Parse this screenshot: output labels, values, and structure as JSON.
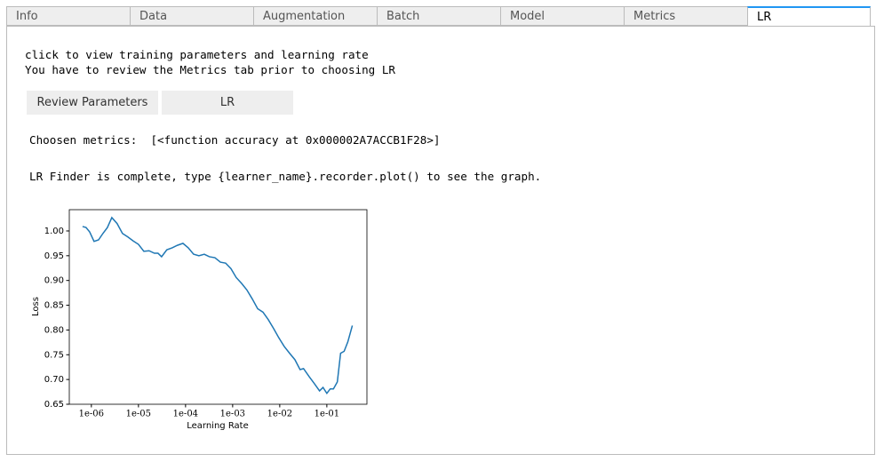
{
  "tabs": [
    "Info",
    "Data",
    "Augmentation",
    "Batch",
    "Model",
    "Metrics",
    "LR"
  ],
  "info": {
    "lines": [
      "click to view training parameters and learning rate",
      "You have to review the Metrics tab prior to choosing LR"
    ],
    "buttons": [
      "Review Parameters",
      "LR"
    ],
    "metrics": "Choosen metrics:  [<function accuracy at 0x000002A7ACCB1F28>]",
    "status": "LR Finder is complete, type {learner_name}.recorder.plot() to see the graph."
  },
  "chart_data": {
    "type": "line",
    "xlabel": "Learning Rate",
    "ylabel": "Loss",
    "color": "#1f77b4",
    "log_x": true,
    "x": [
      6.5e-07,
      7.7e-07,
      9.2e-07,
      1.14e-06,
      1.42e-06,
      1.76e-06,
      2.19e-06,
      2.72e-06,
      3.52e-06,
      4.57e-06,
      5.93e-06,
      7.7e-06,
      1e-05,
      1.3e-05,
      1.68e-05,
      2.18e-05,
      2.6e-05,
      3.1e-05,
      4e-05,
      5.2e-05,
      6.7e-05,
      8.8e-05,
      0.000114,
      0.000148,
      0.000192,
      0.00025,
      0.00032,
      0.00042,
      0.00055,
      0.00071,
      0.00092,
      0.00119,
      0.00155,
      0.002,
      0.0026,
      0.0034,
      0.0044,
      0.0057,
      0.0074,
      0.0096,
      0.0124,
      0.0162,
      0.021,
      0.027,
      0.032,
      0.042,
      0.054,
      0.07,
      0.083,
      0.1,
      0.118,
      0.138,
      0.167,
      0.196,
      0.233,
      0.279,
      0.348
    ],
    "values": [
      1.009,
      1.007,
      0.998,
      0.979,
      0.982,
      0.995,
      1.007,
      1.027,
      1.015,
      0.995,
      0.988,
      0.98,
      0.973,
      0.959,
      0.96,
      0.955,
      0.955,
      0.948,
      0.962,
      0.966,
      0.971,
      0.975,
      0.966,
      0.953,
      0.95,
      0.953,
      0.948,
      0.946,
      0.937,
      0.935,
      0.924,
      0.906,
      0.894,
      0.881,
      0.863,
      0.843,
      0.836,
      0.821,
      0.803,
      0.784,
      0.767,
      0.753,
      0.74,
      0.72,
      0.722,
      0.706,
      0.692,
      0.677,
      0.684,
      0.672,
      0.681,
      0.681,
      0.695,
      0.753,
      0.757,
      0.776,
      0.809
    ],
    "xlim": [
      3.4e-07,
      0.71
    ],
    "ylim": [
      0.65,
      1.043
    ],
    "xticks": [
      {
        "value": 1e-06,
        "label": "1e-06"
      },
      {
        "value": 1e-05,
        "label": "1e-05"
      },
      {
        "value": 0.0001,
        "label": "1e-04"
      },
      {
        "value": 0.001,
        "label": "1e-03"
      },
      {
        "value": 0.01,
        "label": "1e-02"
      },
      {
        "value": 0.1,
        "label": "1e-01"
      }
    ],
    "yticks": [
      0.65,
      {
        "value": 0.7,
        "label": "0.70"
      },
      0.75,
      {
        "value": 0.8,
        "label": "0.80"
      },
      0.85,
      {
        "value": 0.9,
        "label": "0.90"
      },
      0.95,
      {
        "value": 1,
        "label": "1.00"
      }
    ]
  }
}
